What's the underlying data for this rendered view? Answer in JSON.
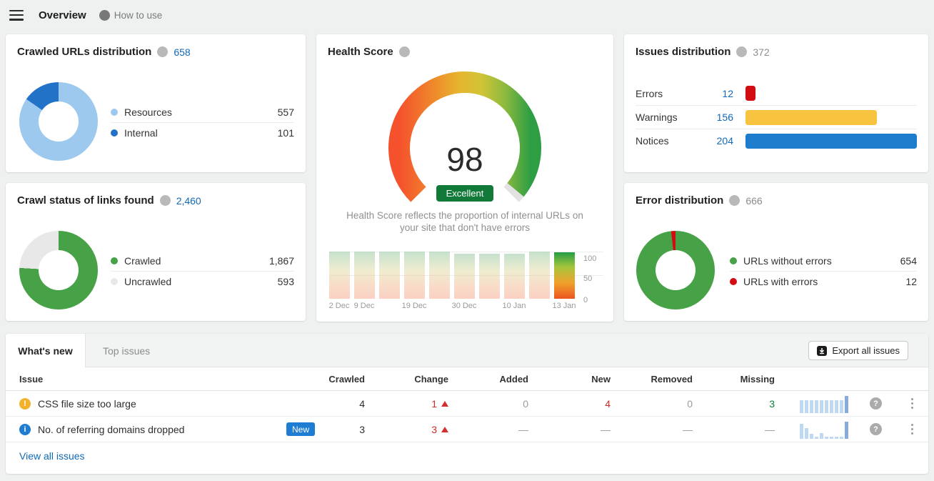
{
  "topbar": {
    "title": "Overview",
    "help_label": "How to use"
  },
  "cards": {
    "crawled_urls": {
      "title": "Crawled URLs distribution",
      "total": "658",
      "donut": [
        {
          "label": "Resources",
          "display": "557",
          "color": "#9ec9ee",
          "pct": 84.65
        },
        {
          "label": "Internal",
          "display": "101",
          "color": "#2272c8",
          "pct": 15.35
        }
      ]
    },
    "health_score": {
      "title": "Health Score",
      "score": "98",
      "badge": "Excellent",
      "description": "Health Score reflects the proportion of internal URLs on your site that don't have errors",
      "trend": {
        "values": [
          100,
          100,
          100,
          100,
          100,
          96,
          95,
          96,
          100,
          98
        ],
        "labels": {
          "0": "2 Dec",
          "1": "9 Dec",
          "3": "19 Dec",
          "5": "30 Dec",
          "7": "10 Jan",
          "9": "13 Jan"
        },
        "yticks": [
          "100",
          "50",
          "0"
        ]
      }
    },
    "issues_distribution": {
      "title": "Issues distribution",
      "total": "372",
      "rows": [
        {
          "label": "Errors",
          "value": "12",
          "color": "#d20d12",
          "width_pct": 5.9
        },
        {
          "label": "Warnings",
          "value": "156",
          "color": "#f8c33f",
          "width_pct": 76.5
        },
        {
          "label": "Notices",
          "value": "204",
          "color": "#1e7ccd",
          "width_pct": 100
        }
      ]
    },
    "crawl_status": {
      "title": "Crawl status of links found",
      "total": "2,460",
      "donut": [
        {
          "label": "Crawled",
          "display": "1,867",
          "color": "#47a247",
          "pct": 75.9
        },
        {
          "label": "Uncrawled",
          "display": "593",
          "color": "#e8e8e8",
          "pct": 24.1
        }
      ]
    },
    "error_distribution": {
      "title": "Error distribution",
      "total": "666",
      "donut": [
        {
          "label": "URLs without errors",
          "display": "654",
          "color": "#47a247",
          "pct": 98.2
        },
        {
          "label": "URLs with errors",
          "display": "12",
          "color": "#d20d12",
          "pct": 1.8
        }
      ]
    }
  },
  "issues_table": {
    "tabs": [
      {
        "label": "What's new",
        "active": true
      },
      {
        "label": "Top issues",
        "active": false
      }
    ],
    "export_label": "Export all issues",
    "columns": {
      "issue": "Issue",
      "crawled": "Crawled",
      "change": "Change",
      "added": "Added",
      "new": "New",
      "removed": "Removed",
      "missing": "Missing"
    },
    "rows": [
      {
        "severity": "warning",
        "issue": "CSS file size too large",
        "badge": "",
        "crawled": "4",
        "change": "1",
        "added": "0",
        "new": "4",
        "removed": "0",
        "missing": "3",
        "spark": [
          0.72,
          0.72,
          0.72,
          0.72,
          0.72,
          0.72,
          0.72,
          0.72,
          0.72,
          1
        ]
      },
      {
        "severity": "notice",
        "issue": "No. of referring domains dropped",
        "badge": "New",
        "crawled": "3",
        "change": "3",
        "added": "—",
        "new": "—",
        "removed": "—",
        "missing": "—",
        "spark": [
          0.85,
          0.62,
          0.26,
          0.12,
          0.3,
          0.12,
          0.1,
          0.1,
          0.1,
          1
        ]
      }
    ],
    "view_all_label": "View all issues"
  },
  "chart_data": [
    {
      "type": "pie",
      "title": "Crawled URLs distribution",
      "labels": [
        "Resources",
        "Internal"
      ],
      "values": [
        557,
        101
      ],
      "total": 658
    },
    {
      "type": "pie",
      "title": "Crawl status of links found",
      "labels": [
        "Crawled",
        "Uncrawled"
      ],
      "values": [
        1867,
        593
      ],
      "total": 2460
    },
    {
      "type": "pie",
      "title": "Error distribution",
      "labels": [
        "URLs without errors",
        "URLs with errors"
      ],
      "values": [
        654,
        12
      ],
      "total": 666
    },
    {
      "type": "bar",
      "title": "Issues distribution",
      "categories": [
        "Errors",
        "Warnings",
        "Notices"
      ],
      "values": [
        12,
        156,
        204
      ],
      "total": 372,
      "orientation": "horizontal"
    },
    {
      "type": "bar",
      "title": "Health Score trend",
      "categories": [
        "2 Dec",
        "9 Dec",
        "",
        "19 Dec",
        "",
        "30 Dec",
        "",
        "10 Jan",
        "",
        "13 Jan"
      ],
      "values": [
        100,
        100,
        100,
        100,
        100,
        96,
        95,
        96,
        100,
        98
      ],
      "ylim": [
        0,
        100
      ],
      "yticks": [
        0,
        50,
        100
      ],
      "legend_position": "none"
    }
  ]
}
